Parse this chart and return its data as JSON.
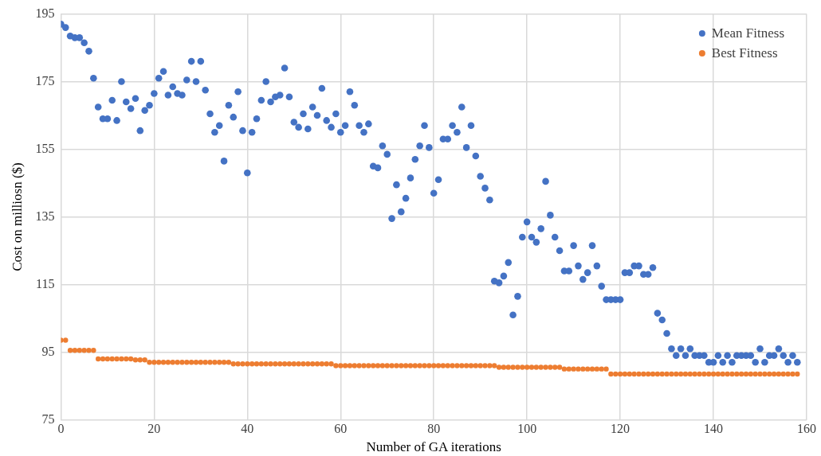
{
  "chart_data": {
    "type": "scatter",
    "xlabel": "Number of GA iterations",
    "ylabel": "Cost on milliosn ($)",
    "xlim": [
      0,
      160
    ],
    "ylim": [
      75,
      195
    ],
    "xticks": [
      0,
      20,
      40,
      60,
      80,
      100,
      120,
      140,
      160
    ],
    "yticks": [
      75,
      95,
      115,
      135,
      155,
      175,
      195
    ],
    "grid": true,
    "legend": "top right",
    "marker": "circle",
    "x": [
      0,
      1,
      2,
      3,
      4,
      5,
      6,
      7,
      8,
      9,
      10,
      11,
      12,
      13,
      14,
      15,
      16,
      17,
      18,
      19,
      20,
      21,
      22,
      23,
      24,
      25,
      26,
      27,
      28,
      29,
      30,
      31,
      32,
      33,
      34,
      35,
      36,
      37,
      38,
      39,
      40,
      41,
      42,
      43,
      44,
      45,
      46,
      47,
      48,
      49,
      50,
      51,
      52,
      53,
      54,
      55,
      56,
      57,
      58,
      59,
      60,
      61,
      62,
      63,
      64,
      65,
      66,
      67,
      68,
      69,
      70,
      71,
      72,
      73,
      74,
      75,
      76,
      77,
      78,
      79,
      80,
      81,
      82,
      83,
      84,
      85,
      86,
      87,
      88,
      89,
      90,
      91,
      92,
      93,
      94,
      95,
      96,
      97,
      98,
      99,
      100,
      101,
      102,
      103,
      104,
      105,
      106,
      107,
      108,
      109,
      110,
      111,
      112,
      113,
      114,
      115,
      116,
      117,
      118,
      119,
      120,
      121,
      122,
      123,
      124,
      125,
      126,
      127,
      128,
      129,
      130,
      131,
      132,
      133,
      134,
      135,
      136,
      137,
      138,
      139,
      140,
      141,
      142,
      143,
      144,
      145,
      146,
      147,
      148,
      149,
      150,
      151,
      152,
      153,
      154,
      155,
      156,
      157,
      158
    ],
    "series": [
      {
        "name": "Mean Fitness",
        "color": "#4472c4",
        "values": [
          192,
          191,
          188.5,
          188,
          188,
          186.5,
          184,
          176,
          167.5,
          164,
          164,
          169.5,
          163.5,
          175,
          169,
          167,
          170,
          160.5,
          166.5,
          168,
          171.5,
          176,
          178,
          171,
          173.5,
          171.5,
          171,
          175.5,
          181,
          175,
          181,
          172.5,
          165.5,
          160,
          162,
          151.5,
          168,
          164.5,
          172,
          160.5,
          148,
          160,
          164,
          169.5,
          175,
          169,
          170.5,
          171,
          179,
          170.5,
          163,
          161.5,
          165.5,
          161,
          167.5,
          165,
          173,
          163.5,
          161.5,
          165.5,
          160,
          162,
          172,
          168,
          162,
          160,
          162.5,
          150,
          149.5,
          156,
          153.5,
          134.5,
          144.5,
          136.5,
          140.5,
          146.5,
          152,
          156,
          162,
          155.5,
          142,
          146,
          158,
          158,
          162,
          160,
          167.5,
          155.5,
          162,
          153,
          147,
          143.5,
          140,
          116,
          115.5,
          117.5,
          121.5,
          106,
          111.5,
          129,
          133.5,
          129,
          127.5,
          131.5,
          145.5,
          135.5,
          129,
          125,
          119,
          119,
          126.5,
          120.5,
          116.5,
          118.5,
          126.5,
          120.5,
          114.5,
          110.5,
          110.5,
          110.5,
          110.5,
          118.5,
          118.5,
          120.5,
          120.5,
          118,
          118,
          120,
          106.5,
          104.5,
          100.5,
          96,
          94,
          96,
          94,
          96,
          94,
          94,
          94,
          92,
          92,
          94,
          92,
          94,
          92,
          94,
          94,
          94,
          94,
          92,
          96,
          92,
          94,
          94,
          96,
          94,
          92,
          94,
          92
        ]
      },
      {
        "name": "Best Fitness",
        "color": "#ed7d31",
        "values": [
          98.5,
          98.5,
          95.5,
          95.5,
          95.5,
          95.5,
          95.5,
          95.5,
          93,
          93,
          93,
          93,
          93,
          93,
          93,
          93,
          92.7,
          92.7,
          92.7,
          92,
          92,
          92,
          92,
          92,
          92,
          92,
          92,
          92,
          92,
          92,
          92,
          92,
          92,
          92,
          92,
          92,
          92,
          91.5,
          91.5,
          91.5,
          91.5,
          91.5,
          91.5,
          91.5,
          91.5,
          91.5,
          91.5,
          91.5,
          91.5,
          91.5,
          91.5,
          91.5,
          91.5,
          91.5,
          91.5,
          91.5,
          91.5,
          91.5,
          91.5,
          91,
          91,
          91,
          91,
          91,
          91,
          91,
          91,
          91,
          91,
          91,
          91,
          91,
          91,
          91,
          91,
          91,
          91,
          91,
          91,
          91,
          91,
          91,
          91,
          91,
          91,
          91,
          91,
          91,
          91,
          91,
          91,
          91,
          91,
          91,
          90.5,
          90.5,
          90.5,
          90.5,
          90.5,
          90.5,
          90.5,
          90.5,
          90.5,
          90.5,
          90.5,
          90.5,
          90.5,
          90.5,
          90,
          90,
          90,
          90,
          90,
          90,
          90,
          90,
          90,
          90,
          88.5,
          88.5,
          88.5,
          88.5,
          88.5,
          88.5,
          88.5,
          88.5,
          88.5,
          88.5,
          88.5,
          88.5,
          88.5,
          88.5,
          88.5,
          88.5,
          88.5,
          88.5,
          88.5,
          88.5,
          88.5,
          88.5,
          88.5,
          88.5,
          88.5,
          88.5,
          88.5,
          88.5,
          88.5,
          88.5,
          88.5,
          88.5,
          88.5,
          88.5,
          88.5,
          88.5,
          88.5,
          88.5,
          88.5,
          88.5,
          88.5
        ]
      }
    ]
  }
}
